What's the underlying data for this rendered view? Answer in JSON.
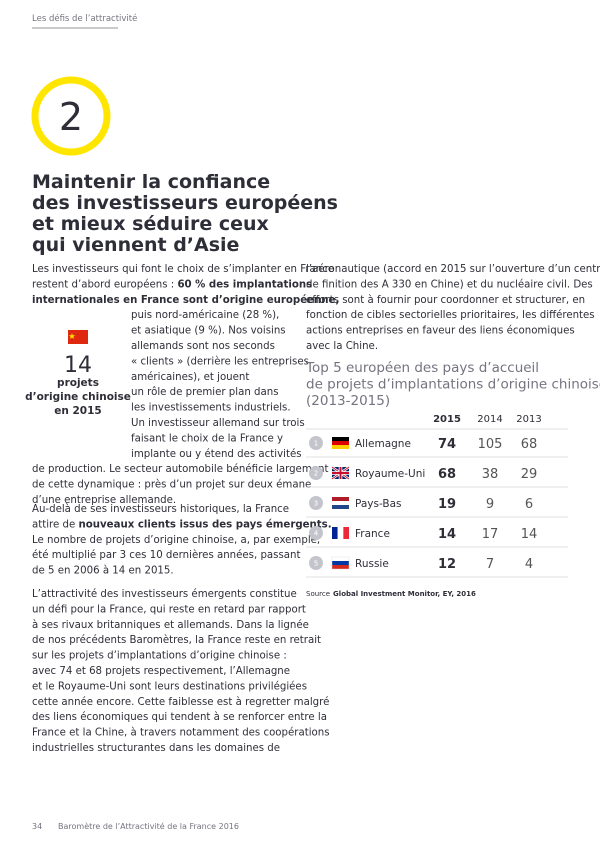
{
  "header": {
    "section": "Les défis de l’attractivité"
  },
  "chapter_number": 2,
  "title_lines": [
    "Maintenir la confiance",
    "des investisseurs européens",
    "et mieux séduire ceux",
    "qui viennent d’Asie"
  ],
  "left_column": {
    "paragraphs": [
      [
        "Les investisseurs qui font le choix de s’implanter en France",
        [
          "restent d’abord européens : ",
          {
            "bold": "60 % des implantations"
          }
        ],
        [
          {
            "bold": "internationales en France sont d’origine européenne,"
          }
        ],
        "puis nord-américaine (28 %),",
        "et asiatique (9 %). Nos voisins",
        "allemands sont nos seconds",
        "« clients » (derrière les entreprises",
        "américaines), et jouent",
        "un rôle de premier plan dans",
        "les investissements industriels.",
        "Un investisseur allemand sur trois",
        "faisant le choix de la France y",
        "implante ou y étend des activités",
        "de production. Le secteur automobile bénéficie largement",
        "de cette dynamique : près d’un projet sur deux émane",
        "d’une entreprise allemande."
      ],
      [
        "Au-delà de ses investisseurs historiques, la France",
        [
          "attire de ",
          {
            "bold": "nouveaux clients issus des pays émergents."
          }
        ],
        "Le nombre de projets d’origine chinoise, a, par exemple,",
        "été multiplié par 3 ces 10 dernières années, passant",
        "de 5 en 2006 à 14 en 2015."
      ],
      [
        "L’attractivité des investisseurs émergents constitue",
        "un défi pour la France, qui reste en retard par rapport",
        "à ses rivaux britanniques et allemands. Dans la lignée",
        "de nos précédents Baromètres, la France reste en retrait",
        "sur les projets d’implantations d’origine chinoise :",
        "avec 74 et 68 projets respectivement, l’Allemagne",
        "et le Royaume-Uni sont leurs destinations privilégiées",
        "cette année encore. Cette faiblesse est à regretter malgré",
        "des liens économiques qui tendent à se renforcer entre la",
        "France et la Chine, à travers notamment des coopérations",
        "industrielles structurantes dans les domaines de"
      ]
    ]
  },
  "inset": {
    "value": 14,
    "label_lines": [
      "projets",
      "d’origine chinoise",
      "en 2015"
    ]
  },
  "right_column": {
    "lines": [
      "l’aéronautique (accord en 2015 sur l’ouverture d’un centre",
      "de finition des A 330 en Chine) et du nucléaire civil. Des",
      "efforts sont à fournir pour coordonner et structurer, en",
      "fonction de cibles sectorielles prioritaires, les différentes",
      "actions entreprises en faveur des liens économiques",
      "avec la Chine."
    ]
  },
  "table": {
    "title_lines": [
      "Top 5 européen des pays d’accueil",
      "de projets d’implantations d’origine chinoise",
      "(2013-2015)"
    ],
    "columns": [
      2015,
      2014,
      2013
    ],
    "rows": [
      {
        "rank": 1,
        "country": "Allemagne",
        "values": [
          74,
          105,
          68
        ]
      },
      {
        "rank": 2,
        "country": "Royaume-Uni",
        "values": [
          68,
          38,
          29
        ]
      },
      {
        "rank": 3,
        "country": "Pays-Bas",
        "values": [
          19,
          9,
          6
        ]
      },
      {
        "rank": 4,
        "country": "France",
        "values": [
          14,
          17,
          14
        ]
      },
      {
        "rank": 5,
        "country": "Russie",
        "values": [
          12,
          7,
          4
        ]
      }
    ],
    "source": {
      "label": "Source",
      "text": "Global Investment Monitor, EY, 2016"
    }
  },
  "footer": {
    "page_number": 34,
    "publication": "Baromètre de l’Attractivité de la France 2016"
  }
}
